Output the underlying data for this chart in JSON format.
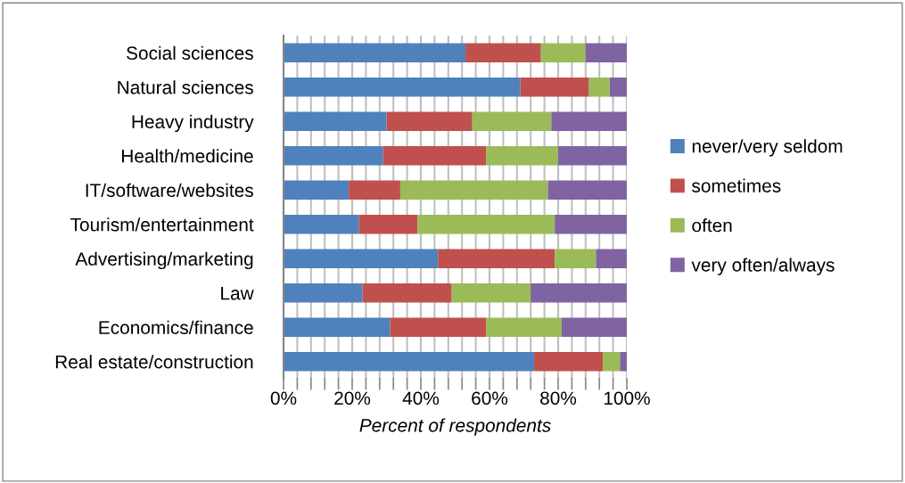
{
  "chart_data": {
    "type": "bar",
    "orientation": "horizontal",
    "stacked": true,
    "categories": [
      "Social sciences",
      "Natural sciences",
      "Heavy industry",
      "Health/medicine",
      "IT/software/websites",
      "Tourism/entertainment",
      "Advertising/marketing",
      "Law",
      "Economics/finance",
      "Real estate/construction"
    ],
    "series": [
      {
        "name": "never/very seldom",
        "color": "#4f81bd",
        "values": [
          53,
          69,
          30,
          29,
          19,
          22,
          45,
          23,
          31,
          73
        ]
      },
      {
        "name": "sometimes",
        "color": "#c0504d",
        "values": [
          22,
          20,
          25,
          30,
          15,
          17,
          34,
          26,
          28,
          20
        ]
      },
      {
        "name": "often",
        "color": "#9bbb59",
        "values": [
          13,
          6,
          23,
          21,
          43,
          40,
          12,
          23,
          22,
          5
        ]
      },
      {
        "name": "very often/always",
        "color": "#8064a2",
        "values": [
          12,
          5,
          22,
          20,
          23,
          21,
          9,
          28,
          19,
          2
        ]
      }
    ],
    "xlabel": "Percent of respondents",
    "xlim": [
      0,
      100
    ],
    "xticks": [
      {
        "value": 0,
        "label": "0%"
      },
      {
        "value": 4,
        "label": null
      },
      {
        "value": 8,
        "label": null
      },
      {
        "value": 12,
        "label": null
      },
      {
        "value": 16,
        "label": null
      },
      {
        "value": 20,
        "label": "20%"
      },
      {
        "value": 24,
        "label": null
      },
      {
        "value": 28,
        "label": null
      },
      {
        "value": 32,
        "label": null
      },
      {
        "value": 36,
        "label": null
      },
      {
        "value": 40,
        "label": "40%"
      },
      {
        "value": 44,
        "label": null
      },
      {
        "value": 48,
        "label": null
      },
      {
        "value": 52,
        "label": null
      },
      {
        "value": 56,
        "label": null
      },
      {
        "value": 60,
        "label": "60%"
      },
      {
        "value": 64,
        "label": null
      },
      {
        "value": 68,
        "label": null
      },
      {
        "value": 72,
        "label": null
      },
      {
        "value": 76,
        "label": null
      },
      {
        "value": 80,
        "label": "80%"
      },
      {
        "value": 84,
        "label": null
      },
      {
        "value": 88,
        "label": null
      },
      {
        "value": 92,
        "label": null
      },
      {
        "value": 96,
        "label": null
      },
      {
        "value": 100,
        "label": "100%"
      }
    ],
    "grid": "x",
    "legend": "right"
  }
}
